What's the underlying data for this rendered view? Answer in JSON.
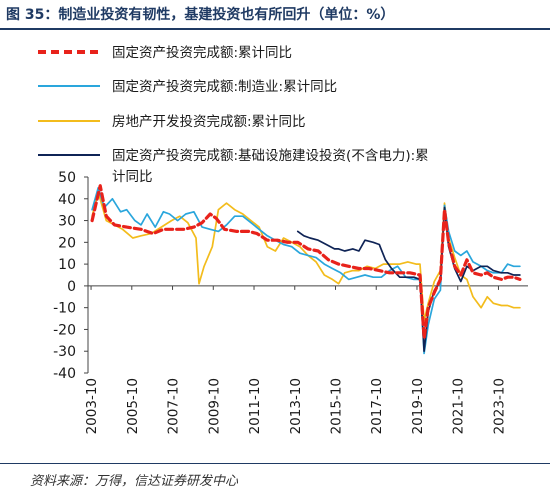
{
  "title": "图 35：制造业投资有韧性，基建投资也有所回升（单位：%）",
  "source": "资料来源：万得，信达证券研发中心",
  "chart_data": {
    "type": "line",
    "xlabel": "",
    "ylabel": "",
    "ylim": [
      -40,
      50
    ],
    "yticks": [
      "50",
      "40",
      "30",
      "20",
      "10",
      "0",
      "-10",
      "-20",
      "-30",
      "-40"
    ],
    "xticks": [
      "2003-10",
      "2005-10",
      "2007-10",
      "2009-10",
      "2011-10",
      "2013-10",
      "2015-10",
      "2017-10",
      "2019-10",
      "2021-10",
      "2023-10"
    ],
    "legend_position": "top",
    "series": [
      {
        "name": "固定资产投资完成额:累计同比",
        "color": "#e8221b",
        "style": "dashed",
        "points": [
          [
            2003.8,
            30
          ],
          [
            2004.2,
            46
          ],
          [
            2004.5,
            32
          ],
          [
            2004.9,
            28
          ],
          [
            2005.5,
            27
          ],
          [
            2006.2,
            26
          ],
          [
            2006.8,
            24
          ],
          [
            2007.3,
            26
          ],
          [
            2007.8,
            26
          ],
          [
            2008.3,
            26
          ],
          [
            2008.8,
            27
          ],
          [
            2009.2,
            29
          ],
          [
            2009.6,
            33
          ],
          [
            2009.9,
            31
          ],
          [
            2010.3,
            26
          ],
          [
            2010.9,
            25
          ],
          [
            2011.5,
            25
          ],
          [
            2011.9,
            24
          ],
          [
            2012.4,
            21
          ],
          [
            2012.9,
            21
          ],
          [
            2013.4,
            20
          ],
          [
            2013.9,
            20
          ],
          [
            2014.4,
            17
          ],
          [
            2014.9,
            16
          ],
          [
            2015.4,
            12
          ],
          [
            2015.9,
            10
          ],
          [
            2016.4,
            9
          ],
          [
            2016.9,
            8
          ],
          [
            2017.4,
            8
          ],
          [
            2017.9,
            7
          ],
          [
            2018.4,
            6
          ],
          [
            2018.9,
            6
          ],
          [
            2019.4,
            6
          ],
          [
            2019.9,
            5
          ],
          [
            2020.1,
            -24
          ],
          [
            2020.3,
            -10
          ],
          [
            2020.6,
            -3
          ],
          [
            2020.9,
            3
          ],
          [
            2021.1,
            35
          ],
          [
            2021.3,
            20
          ],
          [
            2021.6,
            9
          ],
          [
            2021.9,
            5
          ],
          [
            2022.2,
            12
          ],
          [
            2022.5,
            6
          ],
          [
            2022.9,
            5
          ],
          [
            2023.2,
            6
          ],
          [
            2023.5,
            4
          ],
          [
            2023.9,
            3
          ],
          [
            2024.2,
            4
          ],
          [
            2024.5,
            4
          ],
          [
            2024.8,
            3
          ]
        ]
      },
      {
        "name": "固定资产投资完成额:制造业:累计同比",
        "color": "#2aa6dc",
        "style": "solid",
        "points": [
          [
            2003.8,
            35
          ],
          [
            2004.1,
            45
          ],
          [
            2004.4,
            36
          ],
          [
            2004.8,
            40
          ],
          [
            2005.2,
            34
          ],
          [
            2005.5,
            35
          ],
          [
            2005.9,
            30
          ],
          [
            2006.2,
            28
          ],
          [
            2006.5,
            33
          ],
          [
            2006.9,
            27
          ],
          [
            2007.3,
            34
          ],
          [
            2007.6,
            33
          ],
          [
            2008.0,
            30
          ],
          [
            2008.4,
            33
          ],
          [
            2008.8,
            34
          ],
          [
            2009.2,
            27
          ],
          [
            2009.6,
            26
          ],
          [
            2010.0,
            25
          ],
          [
            2010.4,
            28
          ],
          [
            2010.8,
            32
          ],
          [
            2011.2,
            32
          ],
          [
            2011.6,
            29
          ],
          [
            2012.0,
            26
          ],
          [
            2012.4,
            23
          ],
          [
            2012.8,
            21
          ],
          [
            2013.2,
            19
          ],
          [
            2013.6,
            18
          ],
          [
            2014.0,
            15
          ],
          [
            2014.4,
            14
          ],
          [
            2014.8,
            13
          ],
          [
            2015.2,
            10
          ],
          [
            2015.6,
            8
          ],
          [
            2016.0,
            6
          ],
          [
            2016.4,
            3
          ],
          [
            2016.8,
            4
          ],
          [
            2017.2,
            5
          ],
          [
            2017.6,
            4
          ],
          [
            2018.0,
            4
          ],
          [
            2018.4,
            7
          ],
          [
            2018.8,
            9
          ],
          [
            2019.2,
            4
          ],
          [
            2019.6,
            3
          ],
          [
            2019.9,
            3
          ],
          [
            2020.1,
            -31
          ],
          [
            2020.3,
            -18
          ],
          [
            2020.6,
            -6
          ],
          [
            2020.9,
            -2
          ],
          [
            2021.1,
            37
          ],
          [
            2021.3,
            25
          ],
          [
            2021.6,
            16
          ],
          [
            2021.9,
            14
          ],
          [
            2022.2,
            16
          ],
          [
            2022.5,
            11
          ],
          [
            2022.9,
            9
          ],
          [
            2023.2,
            7
          ],
          [
            2023.5,
            6
          ],
          [
            2023.9,
            6
          ],
          [
            2024.2,
            10
          ],
          [
            2024.5,
            9
          ],
          [
            2024.8,
            9
          ]
        ]
      },
      {
        "name": "房地产开发投资完成额:累计同比",
        "color": "#f3bc1c",
        "style": "solid",
        "points": [
          [
            2003.8,
            32
          ],
          [
            2004.1,
            43
          ],
          [
            2004.5,
            30
          ],
          [
            2004.9,
            28
          ],
          [
            2005.3,
            26
          ],
          [
            2005.8,
            22
          ],
          [
            2006.2,
            23
          ],
          [
            2006.7,
            24
          ],
          [
            2007.2,
            27
          ],
          [
            2007.7,
            30
          ],
          [
            2008.1,
            32
          ],
          [
            2008.5,
            29
          ],
          [
            2008.9,
            22
          ],
          [
            2009.05,
            1
          ],
          [
            2009.3,
            9
          ],
          [
            2009.7,
            18
          ],
          [
            2010.0,
            35
          ],
          [
            2010.4,
            38
          ],
          [
            2010.8,
            35
          ],
          [
            2011.2,
            33
          ],
          [
            2011.6,
            30
          ],
          [
            2012.0,
            27
          ],
          [
            2012.4,
            18
          ],
          [
            2012.8,
            16
          ],
          [
            2013.2,
            22
          ],
          [
            2013.6,
            20
          ],
          [
            2014.0,
            18
          ],
          [
            2014.4,
            14
          ],
          [
            2014.8,
            11
          ],
          [
            2015.2,
            5
          ],
          [
            2015.6,
            3
          ],
          [
            2015.9,
            1
          ],
          [
            2016.2,
            6
          ],
          [
            2016.6,
            7
          ],
          [
            2016.9,
            7
          ],
          [
            2017.3,
            9
          ],
          [
            2017.7,
            8
          ],
          [
            2018.1,
            10
          ],
          [
            2018.5,
            10
          ],
          [
            2018.9,
            10
          ],
          [
            2019.3,
            11
          ],
          [
            2019.7,
            10
          ],
          [
            2019.9,
            10
          ],
          [
            2020.1,
            -16
          ],
          [
            2020.3,
            -8
          ],
          [
            2020.6,
            2
          ],
          [
            2020.9,
            7
          ],
          [
            2021.1,
            38
          ],
          [
            2021.3,
            22
          ],
          [
            2021.6,
            13
          ],
          [
            2021.9,
            5
          ],
          [
            2022.2,
            3
          ],
          [
            2022.5,
            -5
          ],
          [
            2022.9,
            -10
          ],
          [
            2023.2,
            -5
          ],
          [
            2023.5,
            -8
          ],
          [
            2023.9,
            -9
          ],
          [
            2024.2,
            -9
          ],
          [
            2024.5,
            -10
          ],
          [
            2024.8,
            -10
          ]
        ]
      },
      {
        "name": "固定资产投资完成额:基础设施建设投资(不含电力):累计同比",
        "color": "#0f2456",
        "style": "solid",
        "points": [
          [
            2013.9,
            25
          ],
          [
            2014.2,
            23
          ],
          [
            2014.5,
            22
          ],
          [
            2014.9,
            21
          ],
          [
            2015.3,
            19
          ],
          [
            2015.7,
            17
          ],
          [
            2015.9,
            17
          ],
          [
            2016.2,
            16
          ],
          [
            2016.6,
            17
          ],
          [
            2016.9,
            16
          ],
          [
            2017.2,
            21
          ],
          [
            2017.6,
            20
          ],
          [
            2017.9,
            19
          ],
          [
            2018.2,
            12
          ],
          [
            2018.5,
            8
          ],
          [
            2018.9,
            4
          ],
          [
            2019.2,
            4
          ],
          [
            2019.6,
            4
          ],
          [
            2019.9,
            3
          ],
          [
            2020.1,
            -30
          ],
          [
            2020.3,
            -12
          ],
          [
            2020.6,
            -2
          ],
          [
            2020.9,
            2
          ],
          [
            2021.1,
            36
          ],
          [
            2021.3,
            18
          ],
          [
            2021.6,
            8
          ],
          [
            2021.9,
            2
          ],
          [
            2022.2,
            9
          ],
          [
            2022.5,
            7
          ],
          [
            2022.9,
            9
          ],
          [
            2023.2,
            9
          ],
          [
            2023.5,
            7
          ],
          [
            2023.9,
            6
          ],
          [
            2024.2,
            6
          ],
          [
            2024.5,
            5
          ],
          [
            2024.8,
            5
          ]
        ]
      }
    ]
  }
}
